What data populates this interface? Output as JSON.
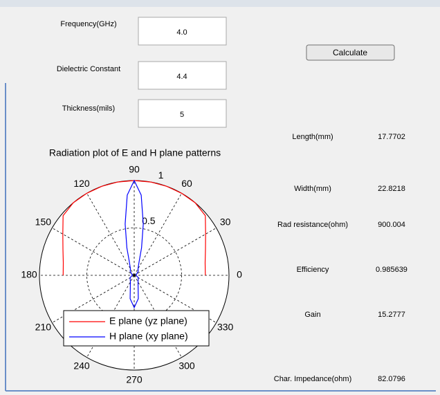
{
  "inputs": [
    {
      "label": "Frequency(GHz)",
      "value": "4.0"
    },
    {
      "label": "Dielectric Constant",
      "value": "4.4"
    },
    {
      "label": "Thickness(mils)",
      "value": "5"
    }
  ],
  "button": "Calculate",
  "outputs": [
    {
      "label": "Length(mm)",
      "value": "17.7702"
    },
    {
      "label": "Width(mm)",
      "value": "22.8218"
    },
    {
      "label": "Rad resistance(ohm)",
      "value": "900.004"
    },
    {
      "label": "Efficiency",
      "value": "0.985639"
    },
    {
      "label": "Gain",
      "value": "15.2777"
    },
    {
      "label": "Char. Impedance(ohm)",
      "value": "82.0796"
    }
  ],
  "chart_data": {
    "type": "polar",
    "title": "Radiation plot of E and H plane patterns",
    "rlim": [
      0,
      1
    ],
    "rticks": [
      0.5,
      1
    ],
    "thetaticks": [
      0,
      30,
      60,
      90,
      120,
      150,
      180,
      210,
      240,
      270,
      300,
      330
    ],
    "legend": "lower-center",
    "series": [
      {
        "name": "E plane (yz plane)",
        "color": "#ff0000",
        "theta": [
          0,
          10,
          20,
          30,
          40,
          50,
          60,
          70,
          80,
          90,
          100,
          110,
          120,
          130,
          140,
          150,
          160,
          170,
          180
        ],
        "values": [
          0.75,
          0.76,
          0.8,
          0.87,
          0.98,
          1,
          1,
          1,
          1,
          1,
          1,
          1,
          1,
          1,
          0.98,
          0.87,
          0.8,
          0.76,
          0.75
        ]
      },
      {
        "name": "H plane (xy plane)",
        "color": "#0000ff",
        "theta": [
          0,
          30,
          45,
          60,
          70,
          75,
          80,
          85,
          90,
          95,
          100,
          105,
          110,
          120,
          135,
          150,
          180,
          210,
          240,
          250,
          260,
          270,
          280,
          290,
          300,
          330,
          360
        ],
        "values": [
          0.02,
          0.03,
          0.06,
          0.08,
          0.15,
          0.3,
          0.55,
          0.85,
          1,
          0.85,
          0.55,
          0.3,
          0.15,
          0.08,
          0.06,
          0.03,
          0.02,
          0.05,
          0.08,
          0.12,
          0.25,
          0.34,
          0.25,
          0.12,
          0.08,
          0.05,
          0.02
        ]
      }
    ]
  }
}
